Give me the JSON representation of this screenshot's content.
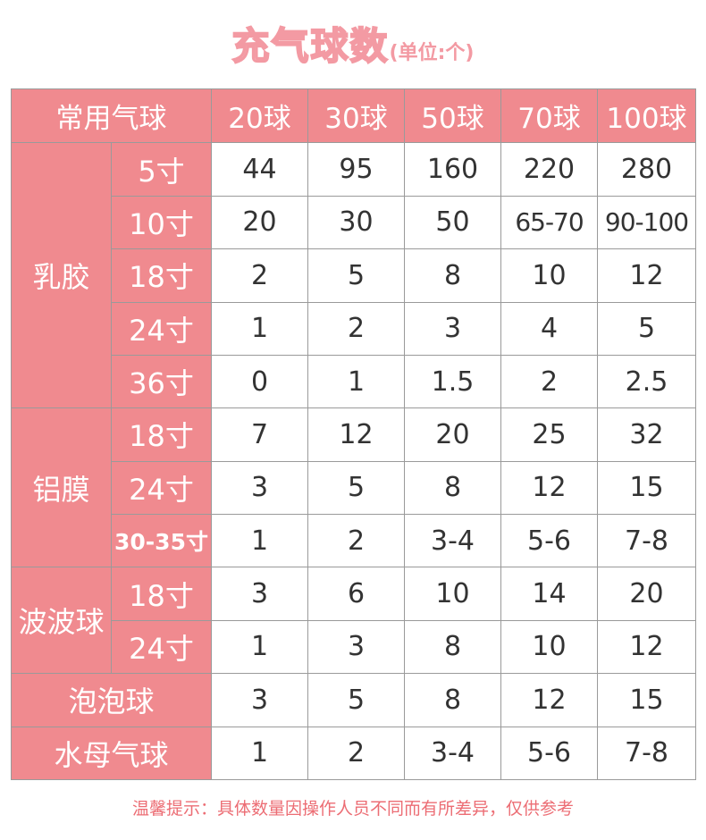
{
  "title": {
    "main": "充气球数",
    "unit": "(单位:个)"
  },
  "colors": {
    "header_bg": "#f08a8f",
    "title": "#f39aa3",
    "note": "#ec6d74",
    "border": "#9a9a9a"
  },
  "table": {
    "corner": "常用气球",
    "columns": [
      "20球",
      "30球",
      "50球",
      "70球",
      "100球"
    ],
    "groups": [
      {
        "name": "乳胶",
        "rows": [
          {
            "size": "5寸",
            "values": [
              "44",
              "95",
              "160",
              "220",
              "280"
            ]
          },
          {
            "size": "10寸",
            "values": [
              "20",
              "30",
              "50",
              "65-70",
              "90-100"
            ]
          },
          {
            "size": "18寸",
            "values": [
              "2",
              "5",
              "8",
              "10",
              "12"
            ]
          },
          {
            "size": "24寸",
            "values": [
              "1",
              "2",
              "3",
              "4",
              "5"
            ]
          },
          {
            "size": "36寸",
            "values": [
              "0",
              "1",
              "1.5",
              "2",
              "2.5"
            ]
          }
        ]
      },
      {
        "name": "铝膜",
        "rows": [
          {
            "size": "18寸",
            "values": [
              "7",
              "12",
              "20",
              "25",
              "32"
            ]
          },
          {
            "size": "24寸",
            "values": [
              "3",
              "5",
              "8",
              "12",
              "15"
            ]
          },
          {
            "size": "30-35寸",
            "values": [
              "1",
              "2",
              "3-4",
              "5-6",
              "7-8"
            ]
          }
        ]
      },
      {
        "name": "波波球",
        "rows": [
          {
            "size": "18寸",
            "values": [
              "3",
              "6",
              "10",
              "14",
              "20"
            ]
          },
          {
            "size": "24寸",
            "values": [
              "1",
              "3",
              "8",
              "10",
              "12"
            ]
          }
        ]
      }
    ],
    "singles": [
      {
        "name": "泡泡球",
        "values": [
          "3",
          "5",
          "8",
          "12",
          "15"
        ]
      },
      {
        "name": "水母气球",
        "values": [
          "1",
          "2",
          "3-4",
          "5-6",
          "7-8"
        ]
      }
    ]
  },
  "note": "温馨提示：具体数量因操作人员不同而有所差异，仅供参考"
}
